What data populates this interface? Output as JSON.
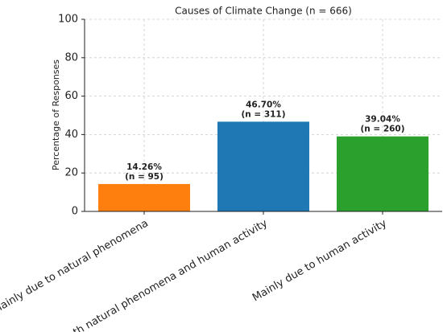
{
  "chart_data": {
    "type": "bar",
    "title": "Causes of Climate Change (n = 666)",
    "y_label": "Percentage of Responses",
    "categories": [
      "Mainly due to natural phenomena",
      "Both natural phenomena and human activity",
      "Mainly due to human activity"
    ],
    "values": [
      14.26,
      46.7,
      39.04
    ],
    "value_labels": [
      "14.26%",
      "46.70%",
      "39.04%"
    ],
    "count_labels": [
      "(n = 95)",
      "(n = 311)",
      "(n = 260)"
    ],
    "colors": [
      "#ff7f0e",
      "#1f77b4",
      "#2ca02c"
    ],
    "ylim": [
      0,
      100
    ],
    "yticks": [
      0,
      20,
      40,
      60,
      80,
      100
    ],
    "grid": true
  }
}
